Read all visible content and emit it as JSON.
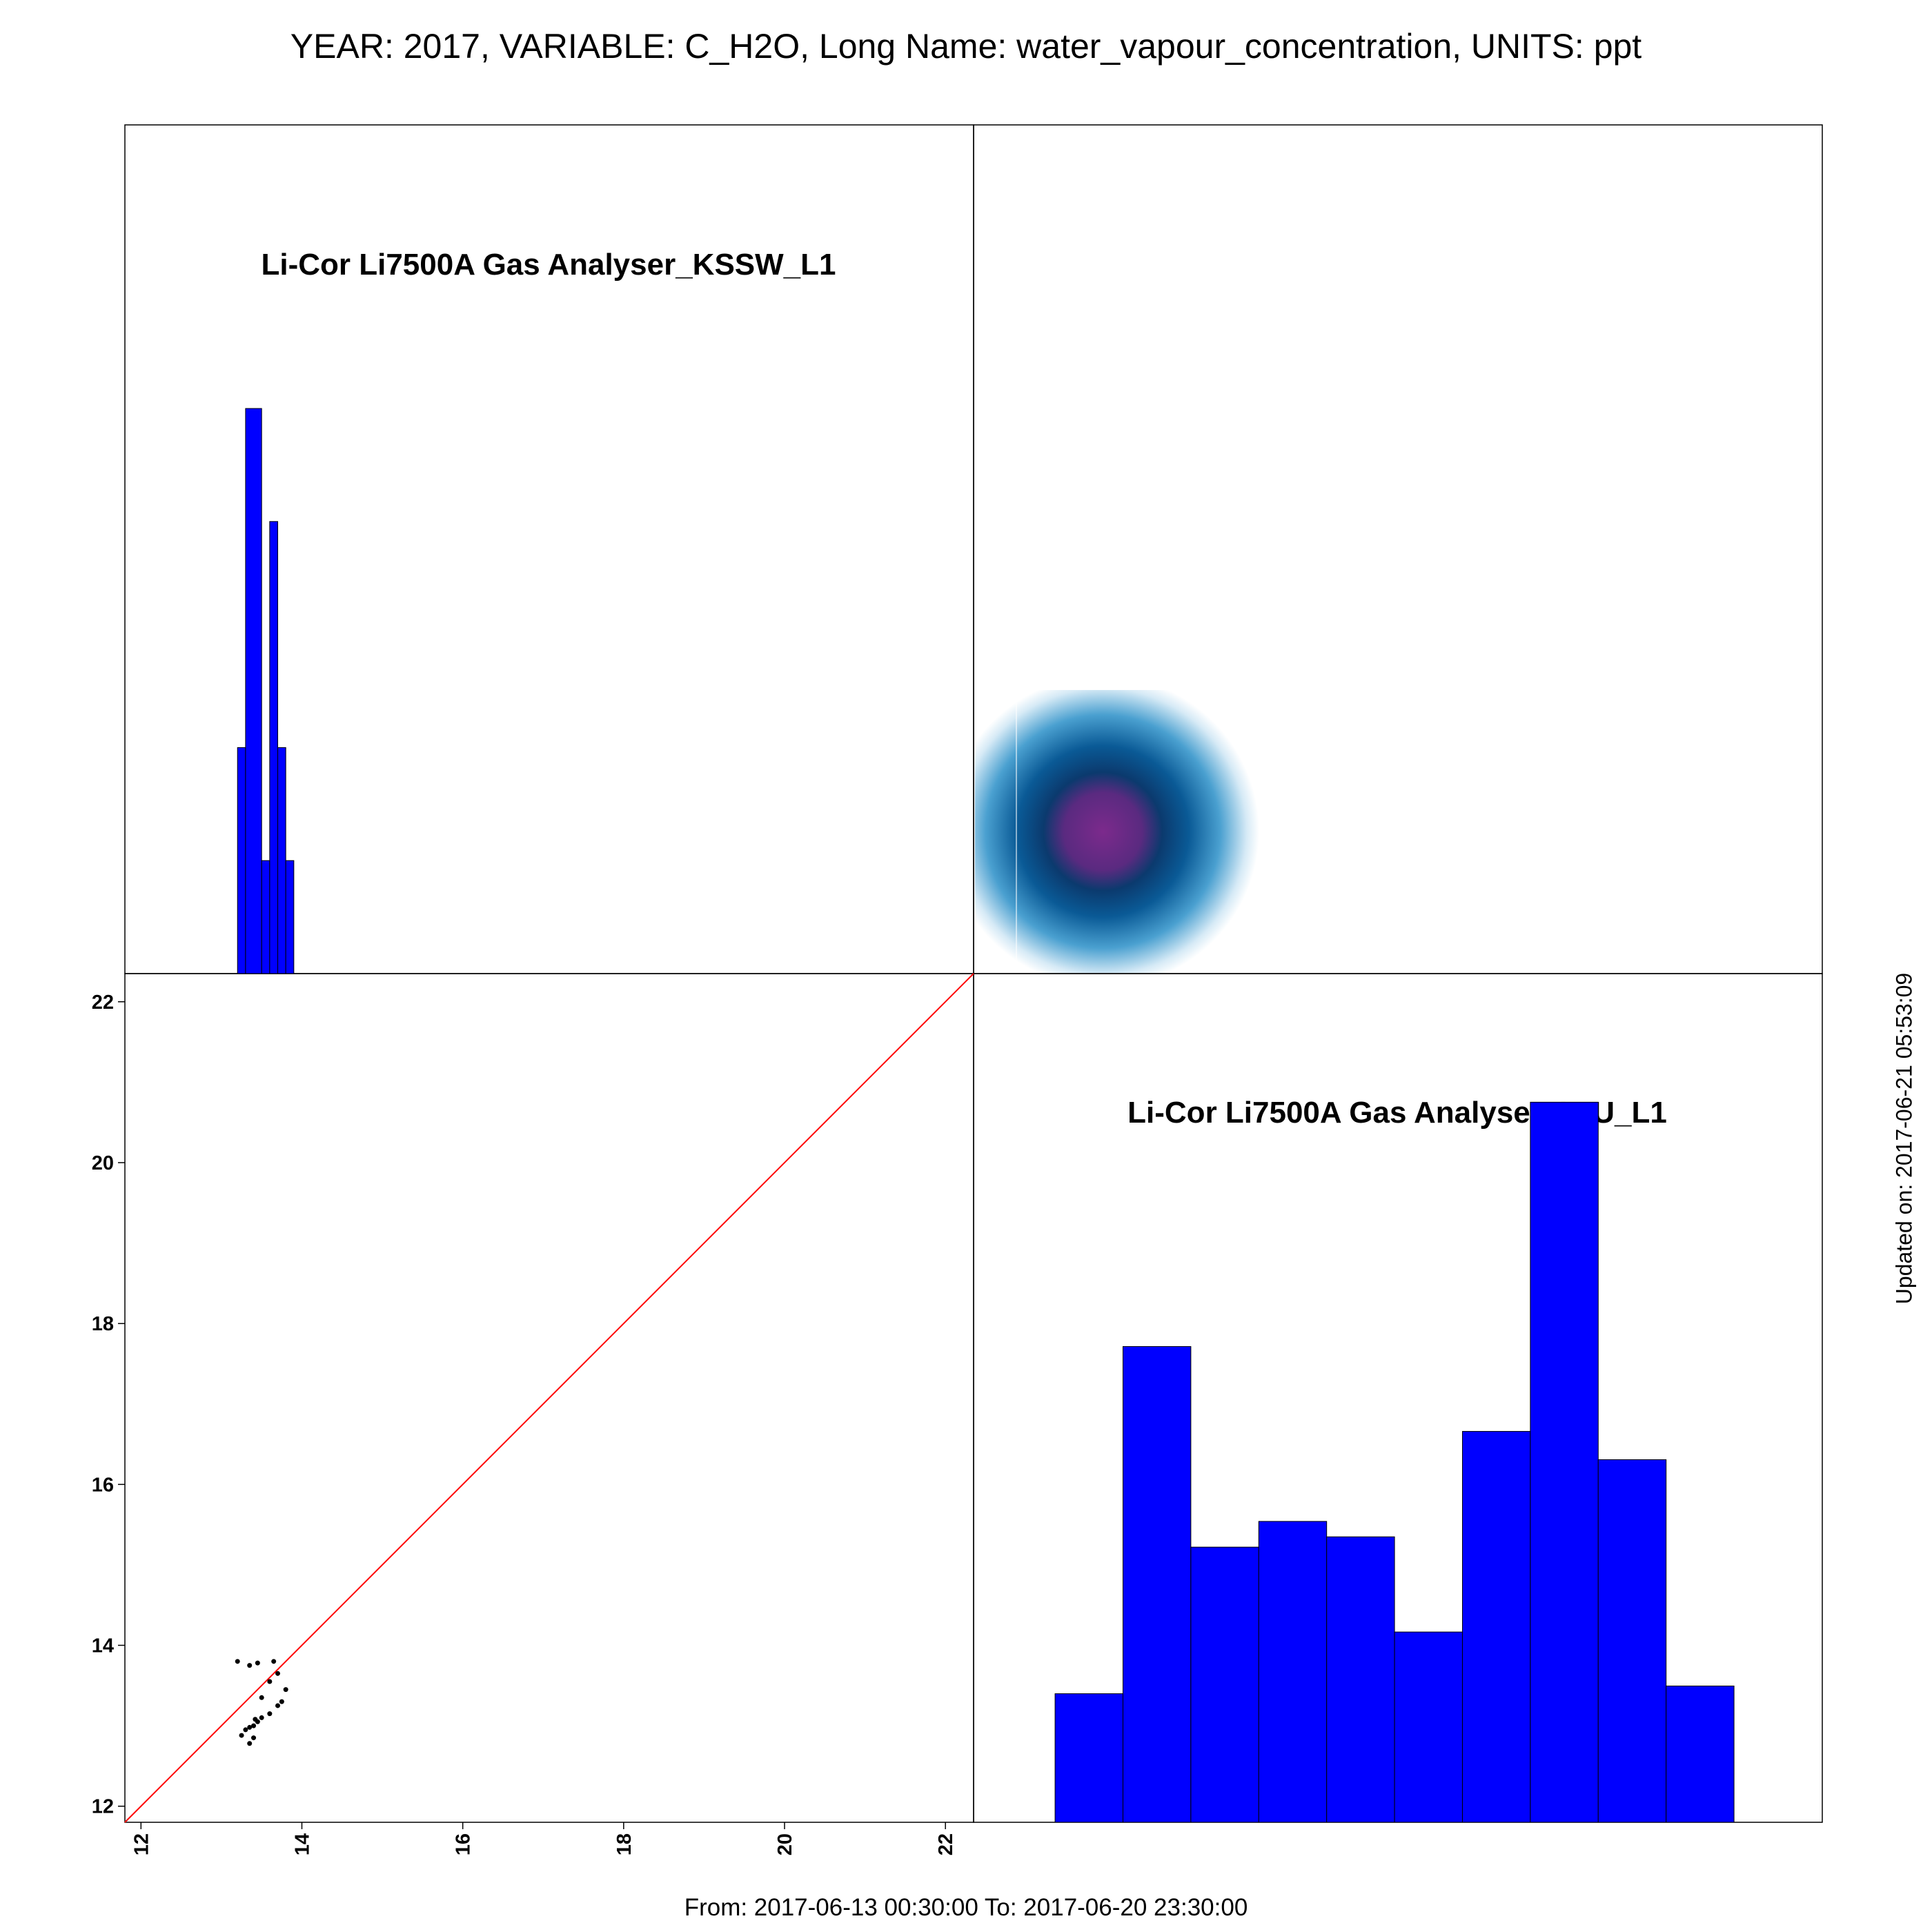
{
  "header": {
    "title": "YEAR: 2017, VARIABLE: C_H2O, Long Name: water_vapour_concentration, UNITS: ppt"
  },
  "footer": {
    "range": "From: 2017-06-13 00:30:00 To: 2017-06-20 23:30:00"
  },
  "side": {
    "updated": "Updated on: 2017-06-21 05:53:09"
  },
  "colors": {
    "bars": "#0000ff",
    "one_to_one_line": "#ff0000",
    "points": "#000000",
    "density_core": "#7a2a8a",
    "density_mid": "#0a5a96"
  },
  "chart_data": [
    {
      "type": "bar",
      "panel": "top-left",
      "title": "Li-Cor Li7500A Gas Analyser_KSSW_L1",
      "x_range": [
        11.8,
        22.35
      ],
      "bins": [
        {
          "x0": 13.2,
          "x1": 13.3,
          "value": 2
        },
        {
          "x0": 13.3,
          "x1": 13.5,
          "value": 5
        },
        {
          "x0": 13.5,
          "x1": 13.6,
          "value": 1
        },
        {
          "x0": 13.6,
          "x1": 13.7,
          "value": 4
        },
        {
          "x0": 13.7,
          "x1": 13.8,
          "value": 2
        },
        {
          "x0": 13.8,
          "x1": 13.9,
          "value": 1
        }
      ]
    },
    {
      "type": "heatmap",
      "panel": "top-right",
      "description_free": true,
      "x_range": [
        12.0,
        15.4
      ],
      "y_range": [
        12.0,
        15.4
      ],
      "center": [
        13.5,
        13.5
      ]
    },
    {
      "type": "scatter",
      "panel": "bottom-left",
      "x_range": [
        11.8,
        22.35
      ],
      "y_range": [
        11.8,
        22.35
      ],
      "x_ticks": [
        "12",
        "14",
        "16",
        "18",
        "20",
        "22"
      ],
      "y_ticks": [
        "12",
        "14",
        "16",
        "18",
        "20",
        "22"
      ],
      "one_to_one_line": true,
      "points": [
        [
          13.2,
          13.8
        ],
        [
          13.35,
          13.75
        ],
        [
          13.45,
          13.78
        ],
        [
          13.65,
          13.8
        ],
        [
          13.7,
          13.65
        ],
        [
          13.6,
          13.55
        ],
        [
          13.8,
          13.45
        ],
        [
          13.5,
          13.35
        ],
        [
          13.75,
          13.3
        ],
        [
          13.7,
          13.25
        ],
        [
          13.6,
          13.15
        ],
        [
          13.5,
          13.1
        ],
        [
          13.45,
          13.05
        ],
        [
          13.4,
          13.0
        ],
        [
          13.35,
          12.98
        ],
        [
          13.25,
          12.88
        ],
        [
          13.4,
          12.85
        ],
        [
          13.35,
          12.78
        ],
        [
          13.3,
          12.95
        ],
        [
          13.42,
          13.08
        ]
      ]
    },
    {
      "type": "bar",
      "panel": "bottom-right",
      "title": "Li-Cor Li7500A Gas Analyser_IMU_L1",
      "x_range": [
        12.6,
        13.85
      ],
      "bins": [
        {
          "x0": 12.72,
          "x1": 12.82,
          "value": 5.0
        },
        {
          "x0": 12.82,
          "x1": 12.92,
          "value": 18.5
        },
        {
          "x0": 12.92,
          "x1": 13.02,
          "value": 10.7
        },
        {
          "x0": 13.02,
          "x1": 13.12,
          "value": 11.7
        },
        {
          "x0": 13.12,
          "x1": 13.22,
          "value": 11.1
        },
        {
          "x0": 13.22,
          "x1": 13.32,
          "value": 7.4
        },
        {
          "x0": 13.32,
          "x1": 13.42,
          "value": 15.2
        },
        {
          "x0": 13.42,
          "x1": 13.52,
          "value": 28.0
        },
        {
          "x0": 13.52,
          "x1": 13.62,
          "value": 14.1
        },
        {
          "x0": 13.62,
          "x1": 13.72,
          "value": 5.3
        }
      ],
      "ylim": [
        0,
        33
      ]
    }
  ]
}
